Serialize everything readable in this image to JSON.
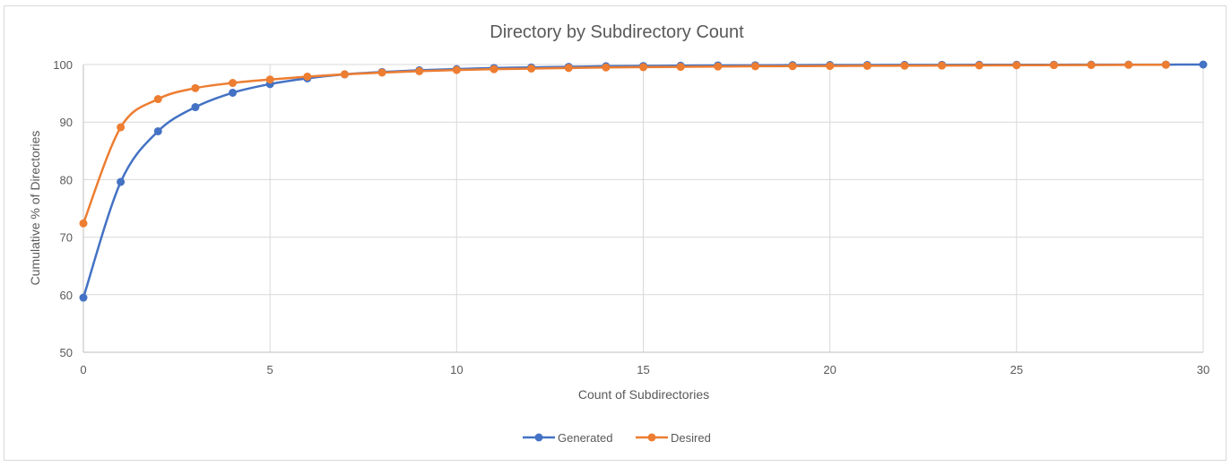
{
  "chart_data": {
    "type": "line",
    "title": "Directory by Subdirectory Count",
    "xlabel": "Count of Subdirectories",
    "ylabel": "Cumulative % of Directories",
    "xlim": [
      0,
      30
    ],
    "ylim": [
      50,
      100
    ],
    "x_ticks": [
      0,
      5,
      10,
      15,
      20,
      25,
      30
    ],
    "y_ticks": [
      50,
      60,
      70,
      80,
      90,
      100
    ],
    "grid": true,
    "legend_position": "bottom",
    "series": [
      {
        "name": "Generated",
        "color": "#4472c4",
        "x": [
          0,
          1,
          2,
          3,
          4,
          5,
          6,
          7,
          8,
          9,
          10,
          11,
          12,
          13,
          14,
          15,
          16,
          17,
          18,
          19,
          20,
          21,
          22,
          23,
          24,
          25,
          26,
          27,
          28,
          29,
          30
        ],
        "values": [
          59.5,
          79.6,
          88.4,
          92.6,
          95.1,
          96.6,
          97.6,
          98.3,
          98.7,
          99.0,
          99.2,
          99.4,
          99.5,
          99.6,
          99.7,
          99.75,
          99.8,
          99.85,
          99.87,
          99.9,
          99.92,
          99.93,
          99.94,
          99.95,
          99.96,
          99.97,
          99.97,
          99.98,
          99.98,
          99.99,
          100.0
        ]
      },
      {
        "name": "Desired",
        "color": "#ed7d31",
        "x": [
          0,
          1,
          2,
          3,
          4,
          5,
          6,
          7,
          8,
          9,
          10,
          11,
          12,
          13,
          14,
          15,
          16,
          17,
          18,
          19,
          20,
          21,
          22,
          23,
          24,
          25,
          26,
          27,
          28,
          29
        ],
        "values": [
          72.4,
          89.1,
          94.0,
          95.9,
          96.8,
          97.4,
          97.9,
          98.3,
          98.6,
          98.85,
          99.05,
          99.2,
          99.3,
          99.4,
          99.5,
          99.55,
          99.6,
          99.65,
          99.7,
          99.72,
          99.75,
          99.78,
          99.8,
          99.82,
          99.85,
          99.87,
          99.9,
          99.92,
          99.95,
          99.97
        ]
      }
    ]
  }
}
